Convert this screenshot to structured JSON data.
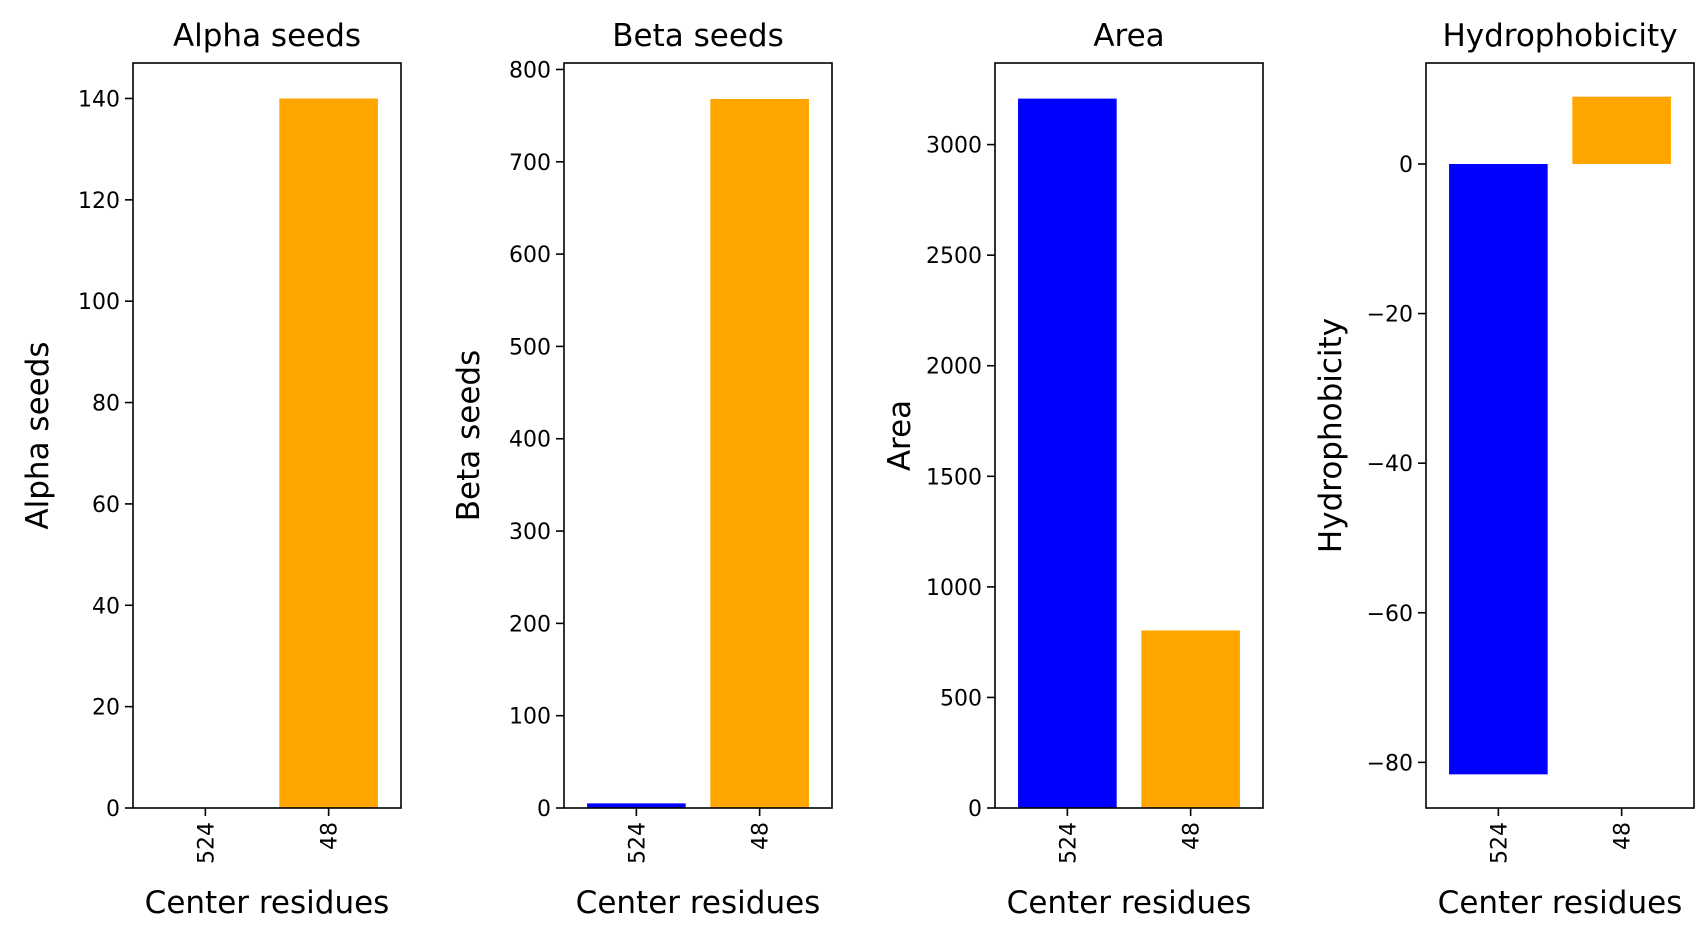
{
  "chart_data": [
    {
      "type": "bar",
      "title": "Alpha seeds",
      "xlabel": "Center residues",
      "ylabel": "Alpha seeds",
      "categories": [
        "524",
        "48"
      ],
      "values": [
        0,
        140
      ],
      "colors": [
        "#0000ff",
        "#ffa500"
      ],
      "ylim": [
        0,
        147
      ],
      "yticks": [
        0,
        20,
        40,
        60,
        80,
        100,
        120,
        140
      ],
      "grid": false
    },
    {
      "type": "bar",
      "title": "Beta seeds",
      "xlabel": "Center residues",
      "ylabel": "Beta seeds",
      "categories": [
        "524",
        "48"
      ],
      "values": [
        5,
        768
      ],
      "colors": [
        "#0000ff",
        "#ffa500"
      ],
      "ylim": [
        0,
        807
      ],
      "yticks": [
        0,
        100,
        200,
        300,
        400,
        500,
        600,
        700,
        800
      ],
      "grid": false
    },
    {
      "type": "bar",
      "title": "Area",
      "xlabel": "Center residues",
      "ylabel": "Area",
      "categories": [
        "524",
        "48"
      ],
      "values": [
        3208,
        803
      ],
      "colors": [
        "#0000ff",
        "#ffa500"
      ],
      "ylim": [
        0,
        3369
      ],
      "yticks": [
        0,
        500,
        1000,
        1500,
        2000,
        2500,
        3000
      ],
      "ytick_labels": [
        "0",
        "500",
        "1000",
        "1500",
        "2000",
        "2500",
        "3000"
      ],
      "grid": false
    },
    {
      "type": "bar",
      "title": "Hydrophobicity",
      "xlabel": "Center residues",
      "ylabel": "Hydrophobicity",
      "categories": [
        "524",
        "48"
      ],
      "values": [
        -81.6,
        9.0
      ],
      "colors": [
        "#0000ff",
        "#ffa500"
      ],
      "ylim": [
        -86.1,
        13.5
      ],
      "yticks": [
        -80,
        -60,
        -40,
        -20,
        0
      ],
      "ytick_labels": [
        "−80",
        "−60",
        "−40",
        "−20",
        "0"
      ],
      "grid": false
    }
  ]
}
